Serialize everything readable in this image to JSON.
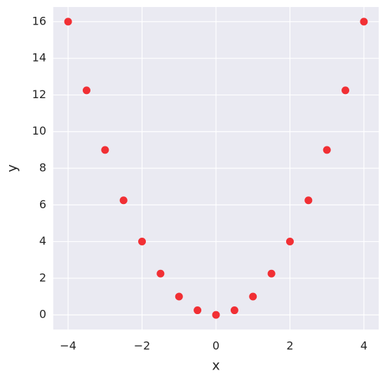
{
  "chart_data": {
    "type": "scatter",
    "x": [
      -4,
      -3.5,
      -3,
      -2.5,
      -2,
      -1.5,
      -1,
      -0.5,
      0,
      0.5,
      1,
      1.5,
      2,
      2.5,
      3,
      3.5,
      4
    ],
    "values": [
      16,
      12.25,
      9,
      6.25,
      4,
      2.25,
      1,
      0.25,
      0,
      0.25,
      1,
      2.25,
      4,
      6.25,
      9,
      12.25,
      16
    ],
    "color": "#f21b1f",
    "x_label": "x",
    "y_label": "y",
    "xlim": [
      -4.4,
      4.4
    ],
    "xticks": [
      {
        "value": -4,
        "label": "−4"
      },
      {
        "value": -2,
        "label": "−2"
      },
      0,
      2,
      4
    ],
    "ylim": [
      -0.8,
      16.8
    ],
    "yticks": [
      0,
      2,
      4,
      6,
      8,
      10,
      12,
      14,
      16
    ],
    "grid": true
  }
}
